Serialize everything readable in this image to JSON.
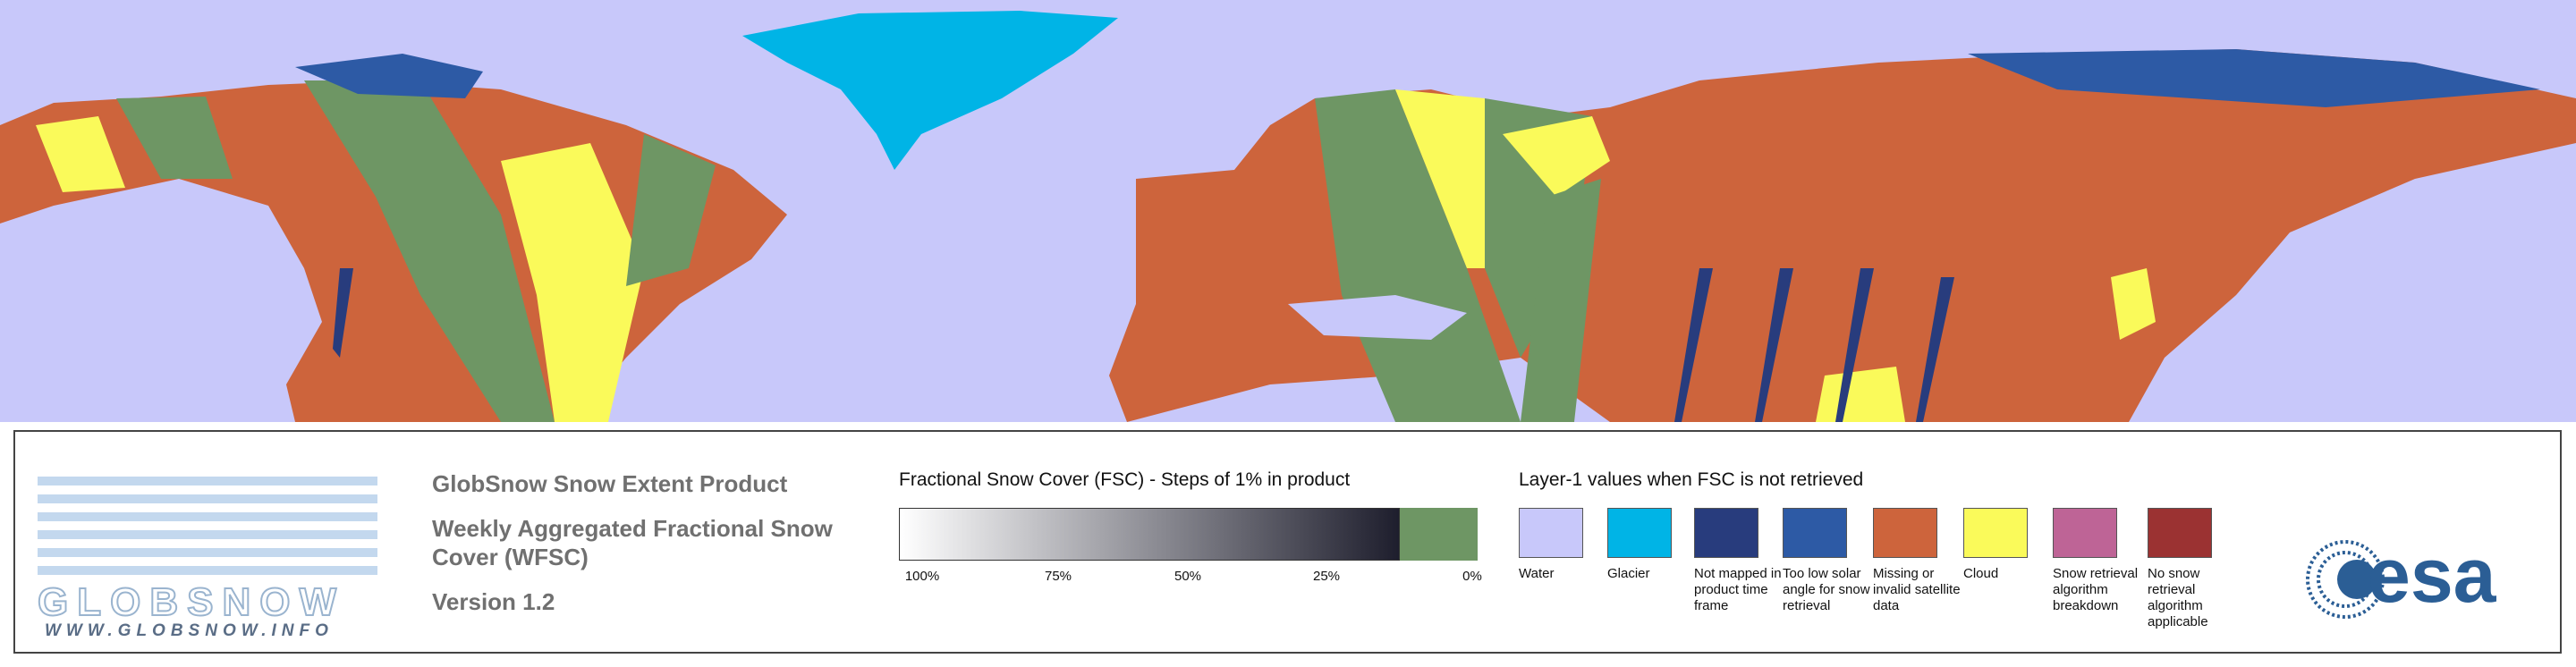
{
  "logo": {
    "name": "GLOBSNOW",
    "url": "WWW.GLOBSNOW.INFO"
  },
  "product": {
    "title": "GlobSnow Snow Extent Product",
    "subtitle": "Weekly Aggregated Fractional Snow Cover (WFSC)",
    "version": "Version 1.2"
  },
  "colorbar": {
    "title": "Fractional Snow Cover (FSC) - Steps of 1% in product",
    "ticks": [
      "100%",
      "75%",
      "50%",
      "25%",
      "0%"
    ],
    "start_color": "#ffffff",
    "end_color": "#1e1e2d",
    "zero_color": "#6e9664"
  },
  "layer1": {
    "title": "Layer-1 values when FSC is not retrieved",
    "items": [
      {
        "label": "Water",
        "color": "#c8c8fa"
      },
      {
        "label": "Glacier",
        "color": "#00b4e6"
      },
      {
        "label": "Not mapped in product time frame",
        "color": "#283c7d"
      },
      {
        "label": "Too low solar angle for snow retrieval",
        "color": "#2d5aa5"
      },
      {
        "label": "Missing or invalid satellite data",
        "color": "#cd643c"
      },
      {
        "label": "Cloud",
        "color": "#fafa5a"
      },
      {
        "label": "Snow retrieval algorithm breakdown",
        "color": "#be6496"
      },
      {
        "label": "No snow retrieval algorithm applicable",
        "color": "#9b3232"
      }
    ]
  },
  "agency": "esa"
}
